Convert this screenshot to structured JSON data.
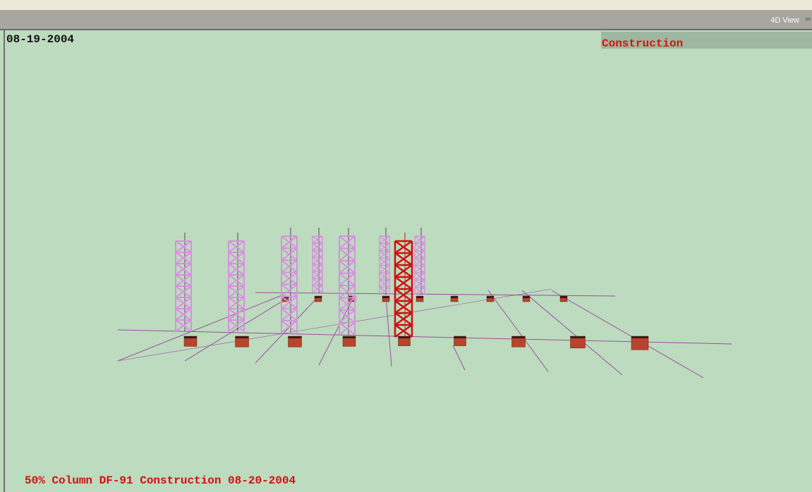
{
  "window": {
    "title": "4D View"
  },
  "viewport": {
    "date": "08-19-2004",
    "mode": "Construction",
    "status": "50% Column DF-91 Construction 08-20-2004"
  }
}
